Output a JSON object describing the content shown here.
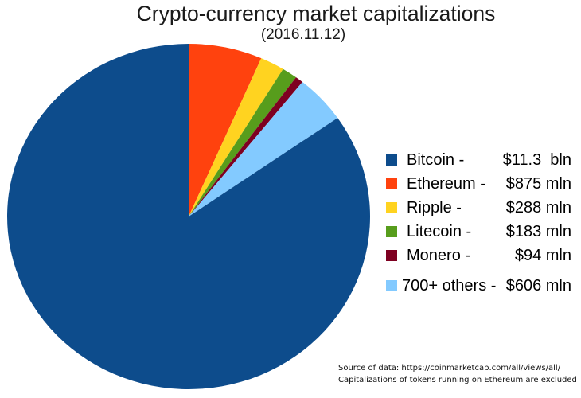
{
  "title": "Crypto-currency market capitalizations",
  "subtitle": "(2016.11.12)",
  "chart_data": {
    "type": "pie",
    "title": "Crypto-currency market capitalizations",
    "date_label": "(2016.11.12)",
    "slices": [
      {
        "label": "Bitcoin",
        "legend_label": "Bitcoin -",
        "value_mln": 11300,
        "display": "$11.3  bln",
        "color": "#0d4c8c",
        "gap_before": false
      },
      {
        "label": "Ethereum",
        "legend_label": "Ethereum -",
        "value_mln": 875,
        "display": "$875 mln",
        "color": "#ff420e",
        "gap_before": false
      },
      {
        "label": "Ripple",
        "legend_label": "Ripple -",
        "value_mln": 288,
        "display": "$288 mln",
        "color": "#ffd320",
        "gap_before": false
      },
      {
        "label": "Litecoin",
        "legend_label": "Litecoin -",
        "value_mln": 183,
        "display": "$183 mln",
        "color": "#579d1c",
        "gap_before": false
      },
      {
        "label": "Monero",
        "legend_label": "Monero -",
        "value_mln": 94,
        "display": "$94 mln",
        "color": "#7e0021",
        "gap_before": false
      },
      {
        "label": "700+ others",
        "legend_label": "700+ others -",
        "value_mln": 606,
        "display": "$606 mln",
        "color": "#83caff",
        "gap_before": true
      }
    ],
    "draw_order": [
      "Ethereum",
      "Ripple",
      "Litecoin",
      "Monero",
      "700+ others",
      "Bitcoin"
    ],
    "direction": "clockwise",
    "start_angle": "12 o'clock",
    "legend_position": "right"
  },
  "source": {
    "line1": "Source of data: https://coinmarketcap.com/all/views/all/",
    "line2": "Capitalizations of tokens running on Ethereum are excluded"
  }
}
